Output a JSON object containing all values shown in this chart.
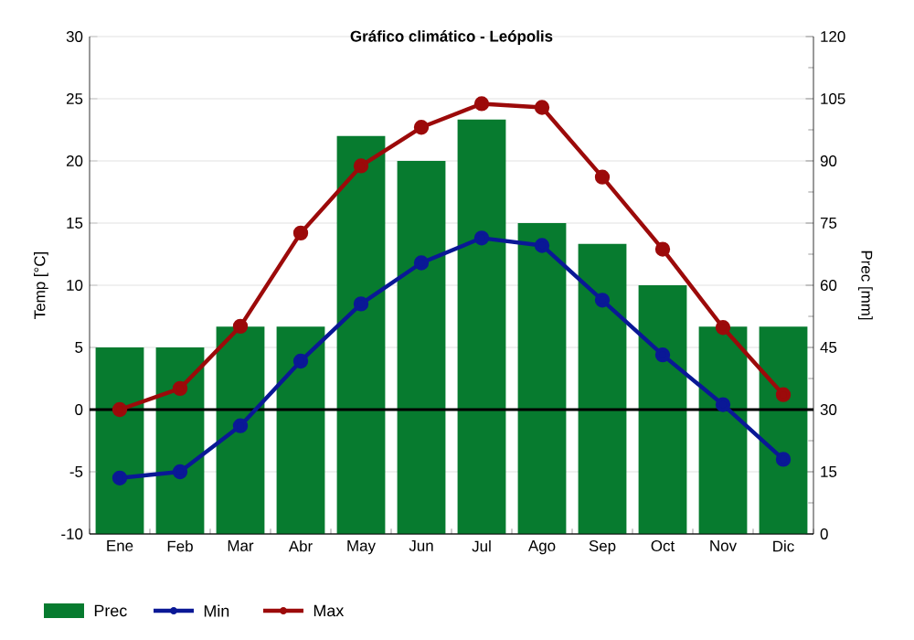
{
  "chart_data": {
    "type": "bar",
    "title": "Gráfico climático - Leópolis",
    "ylabel": "Temp [°C]",
    "y2label": "Prec [mm]",
    "categories": [
      "Ene",
      "Feb",
      "Mar",
      "Abr",
      "May",
      "Jun",
      "Jul",
      "Ago",
      "Sep",
      "Oct",
      "Nov",
      "Dic"
    ],
    "series": [
      {
        "name": "Prec",
        "axis": "y2",
        "color": "#077b2f",
        "values": [
          45,
          45,
          50,
          50,
          96,
          90,
          100,
          75,
          70,
          60,
          50,
          50
        ]
      },
      {
        "name": "Min",
        "type": "line",
        "color": "#0a1896",
        "values": [
          -5.5,
          -5,
          -1.3,
          3.9,
          8.5,
          11.8,
          13.8,
          13.2,
          8.8,
          4.4,
          0.4,
          -4
        ]
      },
      {
        "name": "Max",
        "type": "line",
        "color": "#9c0a0a",
        "values": [
          0,
          1.7,
          6.7,
          14.2,
          19.6,
          22.7,
          24.6,
          24.3,
          18.7,
          12.9,
          6.6,
          1.2
        ]
      }
    ],
    "ylim": [
      -10,
      30
    ],
    "yticks": [
      -10,
      -5,
      0,
      5,
      10,
      15,
      20,
      25,
      30
    ],
    "y2lim": [
      0,
      120
    ],
    "y2ticks": [
      0,
      15,
      30,
      45,
      60,
      75,
      90,
      105,
      120
    ],
    "ref_lines": [
      {
        "axis": "y",
        "value": 0,
        "color": "#000000"
      }
    ],
    "grid": true,
    "legend": "bottom",
    "marker": "circle"
  }
}
